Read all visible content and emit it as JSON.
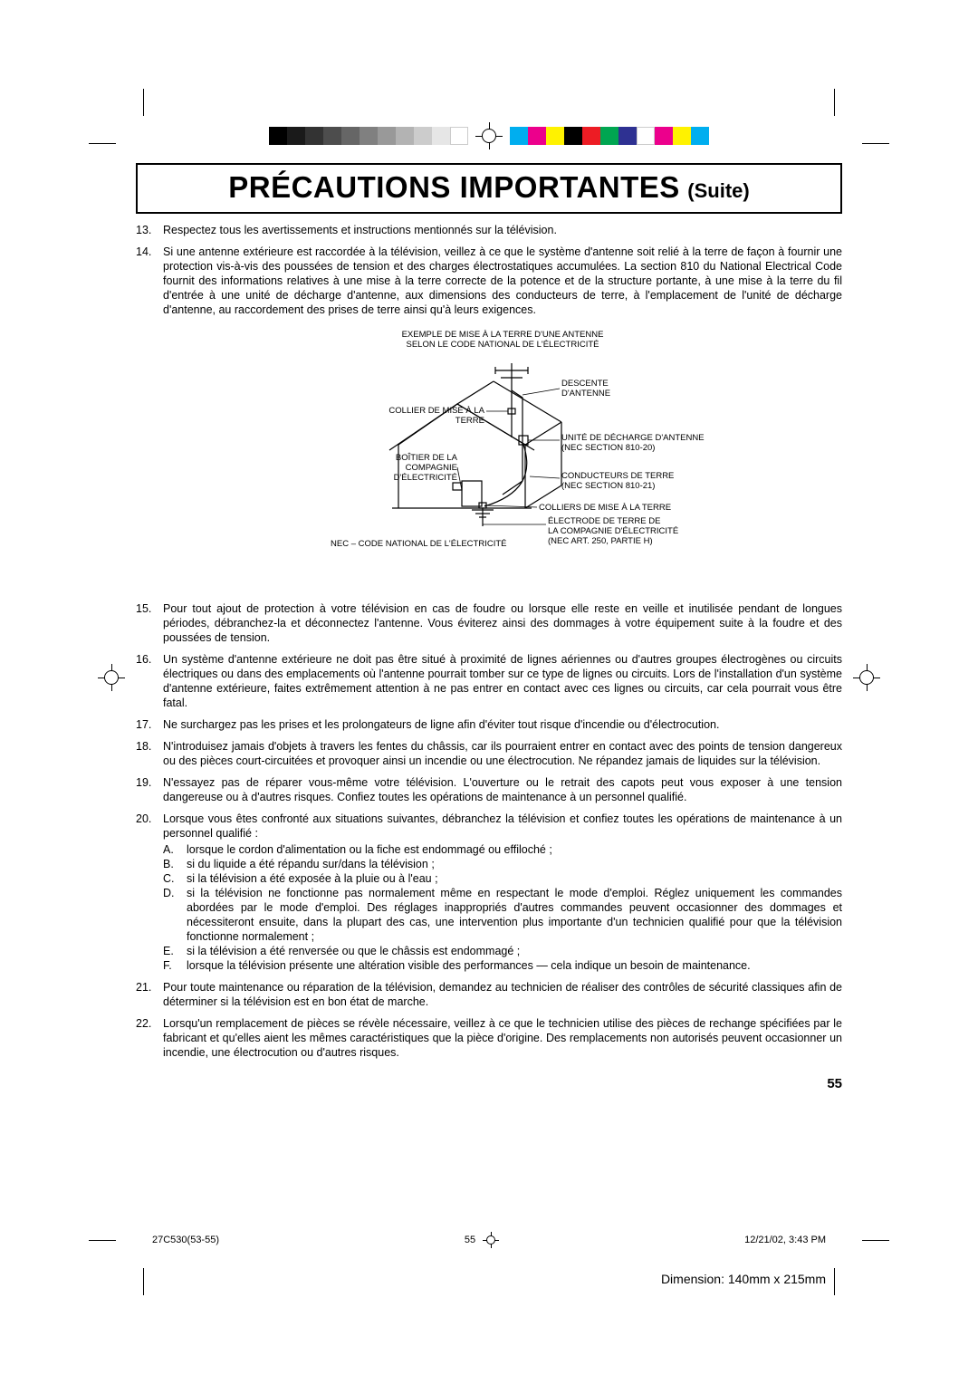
{
  "page": {
    "title_main": "PRÉCAUTIONS IMPORTANTES",
    "title_suite": "(Suite)",
    "page_number": "55",
    "dimension_label": "Dimension: 140mm x 215mm"
  },
  "footer": {
    "doc_ref": "27C530(53-55)",
    "page": "55",
    "datetime": "12/21/02, 3:43 PM"
  },
  "color_bars": {
    "left": [
      "#000000",
      "#1a1a1a",
      "#333333",
      "#4d4d4d",
      "#666666",
      "#808080",
      "#999999",
      "#b3b3b3",
      "#cccccc",
      "#e6e6e6",
      "#ffffff"
    ],
    "right": [
      "#00aeef",
      "#ec008c",
      "#fff200",
      "#000000",
      "#ed1c24",
      "#00a651",
      "#2e3192",
      "#ffffff",
      "#ec008c",
      "#fff200",
      "#00aeef"
    ]
  },
  "diagram": {
    "title_l1": "EXEMPLE DE MISE À LA TERRE D'UNE ANTENNE",
    "title_l2": "SELON LE CODE NATIONAL DE L'ÉLECTRICITÉ",
    "labels": {
      "descente": "DESCENTE D'ANTENNE",
      "collier_mise": "COLLIER DE MISE À LA TERRE",
      "boitier": "BOÎTIER DE LA COMPAGNIE D'ÉLECTRICITÉ",
      "unite_decharge_l1": "UNITÉ DE DÉCHARGE D'ANTENNE",
      "unite_decharge_l2": "(NEC SECTION 810-20)",
      "conducteurs_l1": "CONDUCTEURS DE TERRE",
      "conducteurs_l2": "(NEC SECTION 810-21)",
      "colliers_terre": "COLLIERS DE MISE À LA TERRE",
      "electrode_l1": "ÉLECTRODE DE TERRE DE",
      "electrode_l2": "LA COMPAGNIE D'ÉLECTRICITÉ",
      "electrode_l3": "(NEC ART. 250, PARTIE H)",
      "nec_note": "NEC – CODE NATIONAL DE L'ÉLECTRICITÉ"
    }
  },
  "items": [
    {
      "num": "13.",
      "text": "Respectez tous les avertissements et instructions mentionnés sur la télévision."
    },
    {
      "num": "14.",
      "text": "Si une antenne extérieure est raccordée à la télévision, veillez à ce que le système d'antenne soit relié à la terre de façon à fournir une protection vis-à-vis des poussées de tension et des charges électrostatiques accumulées. La section 810 du National Electrical Code fournit des informations relatives à une mise à la terre correcte de la potence et de la structure portante, à une mise à la terre du fil d'entrée à une unité de décharge d'antenne, aux dimensions des conducteurs de terre, à l'emplacement de l'unité de décharge d'antenne, au raccordement des prises de terre ainsi qu'à leurs exigences."
    },
    {
      "num": "15.",
      "text": "Pour tout ajout de protection à votre télévision en cas de foudre ou lorsque elle reste en veille et inutilisée pendant de longues périodes, débranchez-la et déconnectez l'antenne. Vous éviterez ainsi des dommages à votre équipement suite à la foudre et des poussées de tension."
    },
    {
      "num": "16.",
      "text": "Un système d'antenne extérieure ne doit pas être situé à proximité de lignes aériennes ou d'autres groupes électrogènes ou circuits électriques ou dans des emplacements où l'antenne pourrait tomber sur ce type de lignes ou circuits. Lors de l'installation d'un système d'antenne extérieure, faites extrêmement attention à ne pas entrer en contact avec ces lignes ou circuits, car cela pourrait vous être fatal."
    },
    {
      "num": "17.",
      "text": "Ne surchargez pas les prises et les prolongateurs de ligne afin d'éviter tout risque d'incendie ou d'électrocution."
    },
    {
      "num": "18.",
      "text": "N'introduisez jamais d'objets à travers les fentes du châssis, car ils pourraient entrer en contact avec des points de tension dangereux ou des pièces court-circuitées et provoquer ainsi un incendie ou une électrocution. Ne répandez jamais de liquides sur la télévision."
    },
    {
      "num": "19.",
      "text": "N'essayez pas de réparer vous-même votre télévision. L'ouverture ou le retrait des capots peut vous exposer à une tension dangereuse ou à d'autres risques. Confiez toutes les opérations de maintenance à un personnel qualifié."
    },
    {
      "num": "20.",
      "text": "Lorsque vous êtes confronté aux situations suivantes, débranchez la télévision et confiez toutes les opérations de maintenance à un personnel qualifié :",
      "sub": [
        {
          "let": "A.",
          "text": "lorsque le cordon d'alimentation ou la fiche est endommagé ou effiloché ;"
        },
        {
          "let": "B.",
          "text": "si du liquide a été répandu sur/dans la télévision ;"
        },
        {
          "let": "C.",
          "text": "si la télévision a été exposée à la pluie ou à l'eau ;"
        },
        {
          "let": "D.",
          "text": "si la télévision ne fonctionne pas normalement même en respectant le mode d'emploi. Réglez uniquement les commandes abordées par le mode d'emploi. Des réglages inappropriés d'autres commandes peuvent occasionner des dommages et nécessiteront ensuite, dans la plupart des cas, une intervention plus importante d'un technicien qualifié pour que la télévision fonctionne normalement ;"
        },
        {
          "let": "E.",
          "text": "si la télévision a été renversée ou que le châssis est endommagé ;"
        },
        {
          "let": "F.",
          "text": "lorsque la télévision présente une altération visible des performances — cela indique un besoin de maintenance."
        }
      ]
    },
    {
      "num": "21.",
      "text": "Pour toute maintenance ou réparation de la télévision, demandez au technicien de réaliser des contrôles de sécurité classiques afin de déterminer si la télévision est en bon état de marche."
    },
    {
      "num": "22.",
      "text": "Lorsqu'un remplacement de pièces se révèle nécessaire, veillez à ce que le technicien utilise des pièces de rechange spécifiées par le fabricant et qu'elles aient les mêmes caractéristiques que la pièce d'origine. Des remplacements non autorisés peuvent occasionner un incendie, une électrocution ou d'autres risques."
    }
  ]
}
